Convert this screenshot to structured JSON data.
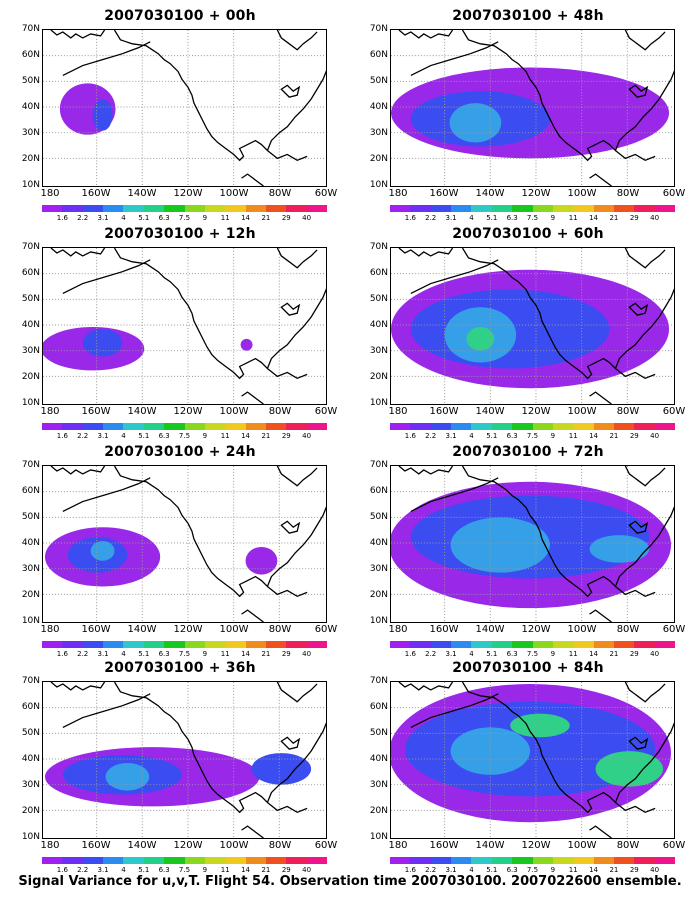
{
  "panels": [
    {
      "title": "2007030100 + 00h",
      "level": 1
    },
    {
      "title": "2007030100 + 12h",
      "level": 2
    },
    {
      "title": "2007030100 + 24h",
      "level": 3
    },
    {
      "title": "2007030100 + 36h",
      "level": 4
    },
    {
      "title": "2007030100 + 48h",
      "level": 5
    },
    {
      "title": "2007030100 + 60h",
      "level": 6
    },
    {
      "title": "2007030100 + 72h",
      "level": 7
    },
    {
      "title": "2007030100 + 84h",
      "level": 8
    }
  ],
  "latitude_labels": [
    "70N",
    "60N",
    "50N",
    "40N",
    "30N",
    "20N",
    "10N"
  ],
  "longitude_labels": [
    "180",
    "160W",
    "140W",
    "120W",
    "100W",
    "80W",
    "60W"
  ],
  "colorbar": {
    "levels": [
      "1.6",
      "2.2",
      "3.1",
      "4",
      "5.1",
      "6.3",
      "7.5",
      "9",
      "11",
      "14",
      "21",
      "29",
      "40"
    ],
    "colors": [
      "#a020f0",
      "#6e2ff5",
      "#3b4df0",
      "#2a8cf0",
      "#2ec8c8",
      "#22d08a",
      "#18c81e",
      "#8ad81e",
      "#c8d81e",
      "#f0c81e",
      "#f08c1e",
      "#f0501e",
      "#f01e5a",
      "#f0148c"
    ]
  },
  "caption": "Signal Variance for u,v,T. Flight 54. Observation time 2007030100. 2007022600 ensemble."
}
